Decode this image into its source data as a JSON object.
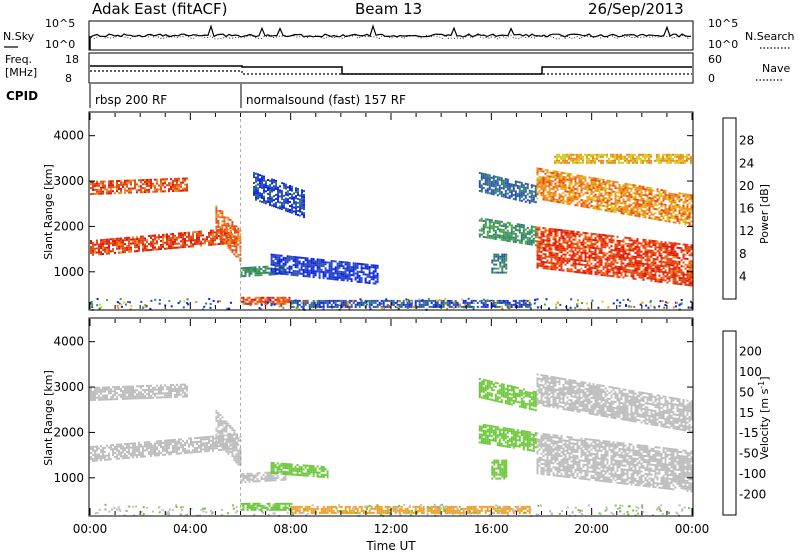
{
  "header": {
    "station": "Adak East (fitACF)",
    "beam": "Beam 13",
    "date": "26/Sep/2013"
  },
  "noise_panel": {
    "left_label": "N.Sky",
    "right_label": "N.Search",
    "ticks_left": [
      "10^5",
      "10^0"
    ],
    "ticks_right": [
      "10^5",
      "10^0"
    ]
  },
  "freq_panel": {
    "left_label_1": "Freq.",
    "left_label_2": "[MHz]",
    "right_label": "Nave",
    "ticks_left": [
      "18",
      "8"
    ],
    "ticks_right": [
      "60",
      "0"
    ]
  },
  "cpid": {
    "label": "CPID",
    "programs": [
      {
        "name": "rbsp 200 RF",
        "start_hour": 0
      },
      {
        "name": "normalsound (fast) 157 RF",
        "start_hour": 6
      }
    ]
  },
  "x_axis": {
    "title": "Time UT",
    "ticks": [
      "00:00",
      "04:00",
      "08:00",
      "12:00",
      "16:00",
      "20:00",
      "00:00"
    ]
  },
  "chart_data": [
    {
      "type": "heatmap",
      "title": "Power",
      "ylabel": "Slant Range [km]",
      "xlabel": "Time UT",
      "y_ticks": [
        "1000",
        "2000",
        "3000",
        "4000"
      ],
      "colorbar_label": "Power [dB]",
      "colorbar_ticks": [
        "4",
        "8",
        "12",
        "16",
        "20",
        "24",
        "28"
      ],
      "colorbar_colors": [
        "#0a22e8",
        "#2a4cb8",
        "#2f7d6a",
        "#46a24a",
        "#d8cc1e",
        "#f08a1e",
        "#e84a14",
        "#e01a0a"
      ],
      "xlim_hours": [
        0,
        24
      ],
      "ylim_km": [
        180,
        4500
      ],
      "bands": [
        {
          "start_hour": 0.0,
          "end_hour": 3.9,
          "r_start": 2700,
          "r_end": 3000,
          "dr": 80,
          "value": 26
        },
        {
          "start_hour": 0.0,
          "end_hour": 5.9,
          "r_start": 1350,
          "r_end": 1700,
          "dr": 280,
          "value": 27
        },
        {
          "start_hour": 5.0,
          "end_hour": 6.0,
          "r_start": 1800,
          "r_end": 2500,
          "dr": -600,
          "value": 24
        },
        {
          "start_hour": 6.0,
          "end_hour": 7.8,
          "r_start": 900,
          "r_end": 1100,
          "dr": 60,
          "value": 12
        },
        {
          "start_hour": 7.2,
          "end_hour": 11.5,
          "r_start": 1000,
          "r_end": 1400,
          "dr": -250,
          "value": 4
        },
        {
          "start_hour": 6.5,
          "end_hour": 8.5,
          "r_start": 2600,
          "r_end": 3200,
          "dr": -400,
          "value": 5
        },
        {
          "start_hour": 6.0,
          "end_hour": 8.0,
          "r_start": 300,
          "r_end": 450,
          "dr": 0,
          "value": 26
        },
        {
          "start_hour": 8.0,
          "end_hour": 17.5,
          "r_start": 220,
          "r_end": 380,
          "dr": 0,
          "value": 6
        },
        {
          "start_hour": 15.5,
          "end_hour": 17.8,
          "r_start": 2800,
          "r_end": 3200,
          "dr": -300,
          "value": 8
        },
        {
          "start_hour": 15.5,
          "end_hour": 17.8,
          "r_start": 1800,
          "r_end": 2200,
          "dr": -200,
          "value": 12
        },
        {
          "start_hour": 16.0,
          "end_hour": 16.6,
          "r_start": 1000,
          "r_end": 1400,
          "dr": 0,
          "value": 10
        },
        {
          "start_hour": 17.8,
          "end_hour": 24.0,
          "r_start": 2600,
          "r_end": 3300,
          "dr": -600,
          "value": 22
        },
        {
          "start_hour": 17.8,
          "end_hour": 24.0,
          "r_start": 1100,
          "r_end": 2000,
          "dr": -400,
          "value": 27
        },
        {
          "start_hour": 18.5,
          "end_hour": 24.0,
          "r_start": 3400,
          "r_end": 3600,
          "dr": 0,
          "value": 20
        }
      ]
    },
    {
      "type": "heatmap",
      "title": "Velocity",
      "ylabel": "Slant Range [km]",
      "xlabel": "Time UT",
      "y_ticks": [
        "1000",
        "2000",
        "3000",
        "4000"
      ],
      "colorbar_label": "Velocity [m s^-1]",
      "colorbar_ticks": [
        "200",
        "100",
        "50",
        "15",
        "-15",
        "-50",
        "-100",
        "-200"
      ],
      "colorbar_colors": [
        "#2430b8",
        "#2e6cb0",
        "#2f8a5a",
        "#6cc83a",
        "#bebebe",
        "#f0a020",
        "#f0700a",
        "#e83010",
        "#e00a0a"
      ],
      "xlim_hours": [
        0,
        24
      ],
      "ylim_km": [
        180,
        4500
      ],
      "bands": [
        {
          "start_hour": 0.0,
          "end_hour": 3.9,
          "r_start": 2700,
          "r_end": 3000,
          "dr": 80,
          "value": 0
        },
        {
          "start_hour": 0.0,
          "end_hour": 5.9,
          "r_start": 1350,
          "r_end": 1700,
          "dr": 280,
          "value": 0
        },
        {
          "start_hour": 5.0,
          "end_hour": 6.0,
          "r_start": 1800,
          "r_end": 2500,
          "dr": -600,
          "value": 0
        },
        {
          "start_hour": 6.0,
          "end_hour": 7.8,
          "r_start": 900,
          "r_end": 1100,
          "dr": 60,
          "value": 0
        },
        {
          "start_hour": 7.2,
          "end_hour": 9.5,
          "r_start": 1100,
          "r_end": 1350,
          "dr": -100,
          "value": 30
        },
        {
          "start_hour": 6.0,
          "end_hour": 8.0,
          "r_start": 300,
          "r_end": 450,
          "dr": 0,
          "value": 30
        },
        {
          "start_hour": 8.0,
          "end_hour": 17.5,
          "r_start": 220,
          "r_end": 380,
          "dr": 0,
          "value": -40
        },
        {
          "start_hour": 15.5,
          "end_hour": 17.8,
          "r_start": 2800,
          "r_end": 3200,
          "dr": -300,
          "value": 30
        },
        {
          "start_hour": 15.5,
          "end_hour": 17.8,
          "r_start": 1800,
          "r_end": 2200,
          "dr": -200,
          "value": 30
        },
        {
          "start_hour": 16.0,
          "end_hour": 16.6,
          "r_start": 1000,
          "r_end": 1400,
          "dr": 0,
          "value": 30
        },
        {
          "start_hour": 17.8,
          "end_hour": 24.0,
          "r_start": 2600,
          "r_end": 3300,
          "dr": -600,
          "value": 0
        },
        {
          "start_hour": 17.8,
          "end_hour": 24.0,
          "r_start": 1100,
          "r_end": 2000,
          "dr": -400,
          "value": 0
        }
      ]
    }
  ]
}
